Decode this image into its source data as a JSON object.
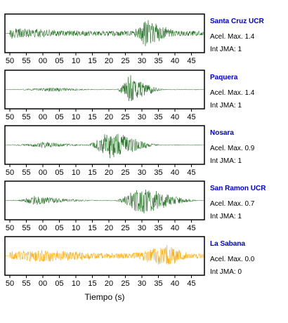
{
  "x_label": "Tiempo (s)",
  "chart_data": [
    {
      "type": "line",
      "station": "Santa Cruz UCR",
      "acel_label": "Acel. Max. 1.4",
      "int_label": "Int JMA: 1",
      "color": "#1a6b1a",
      "name_color": "#0000cc",
      "x_ticks": [
        "50",
        "55",
        "00",
        "05",
        "10",
        "15",
        "20",
        "25",
        "30",
        "35",
        "40",
        "45"
      ],
      "amplitude": 0.9,
      "events": [
        {
          "start_tick": 0,
          "peak_tick": 0,
          "end_tick": 11.8,
          "peak_amp": 0.35,
          "base": 0.3
        },
        {
          "start_tick": 7.2,
          "peak_tick": 8.2,
          "end_tick": 11.0,
          "peak_amp": 1.0
        }
      ]
    },
    {
      "type": "line",
      "station": "Paquera",
      "acel_label": "Acel. Max. 1.4",
      "int_label": "Int JMA: 1",
      "color": "#1a6b1a",
      "name_color": "#0000cc",
      "x_ticks": [
        "50",
        "55",
        "00",
        "05",
        "10",
        "15",
        "20",
        "25",
        "30",
        "35",
        "40",
        "45"
      ],
      "amplitude": 0.9,
      "events": [
        {
          "start_tick": 0.8,
          "peak_tick": 2.5,
          "end_tick": 6.5,
          "peak_amp": 0.15,
          "base": 0.05
        },
        {
          "start_tick": 6.4,
          "peak_tick": 7.3,
          "end_tick": 9.6,
          "peak_amp": 1.0
        }
      ]
    },
    {
      "type": "line",
      "station": "Nosara",
      "acel_label": "Acel. Max. 0.9",
      "int_label": "Int JMA: 1",
      "color": "#1a6b1a",
      "name_color": "#0000cc",
      "x_ticks": [
        "50",
        "55",
        "00",
        "05",
        "10",
        "15",
        "20",
        "25",
        "30",
        "35",
        "40",
        "45"
      ],
      "amplitude": 0.9,
      "events": [
        {
          "start_tick": 0.4,
          "peak_tick": 2.0,
          "end_tick": 6.0,
          "peak_amp": 0.2,
          "base": 0.05
        },
        {
          "start_tick": 4.5,
          "peak_tick": 6.1,
          "end_tick": 9.5,
          "peak_amp": 1.0
        }
      ]
    },
    {
      "type": "line",
      "station": "San Ramon UCR",
      "acel_label": "Acel. Max. 0.7",
      "int_label": "Int JMA: 1",
      "color": "#1a6b1a",
      "name_color": "#0000cc",
      "x_ticks": [
        "50",
        "55",
        "00",
        "05",
        "10",
        "15",
        "20",
        "25",
        "30",
        "35",
        "40",
        "45"
      ],
      "amplitude": 0.9,
      "events": [
        {
          "start_tick": 0.5,
          "peak_tick": 1.5,
          "end_tick": 6.0,
          "peak_amp": 0.3,
          "base": 0.05
        },
        {
          "start_tick": 6.2,
          "peak_tick": 8.0,
          "end_tick": 11.8,
          "peak_amp": 1.0
        }
      ]
    },
    {
      "type": "line",
      "station": "La Sabana",
      "acel_label": "Acel. Max. 0.0",
      "int_label": "Int JMA: 0",
      "color": "#ffaa00",
      "name_color": "#0000cc",
      "x_ticks": [
        "50",
        "55",
        "00",
        "05",
        "10",
        "15",
        "20",
        "25",
        "30",
        "35",
        "40",
        "45"
      ],
      "amplitude": 0.9,
      "events": [
        {
          "start_tick": 0,
          "peak_tick": 2.0,
          "end_tick": 11.8,
          "peak_amp": 0.4,
          "base": 0.3
        },
        {
          "start_tick": 6.0,
          "peak_tick": 9.5,
          "end_tick": 11.8,
          "peak_amp": 0.75
        }
      ]
    }
  ]
}
